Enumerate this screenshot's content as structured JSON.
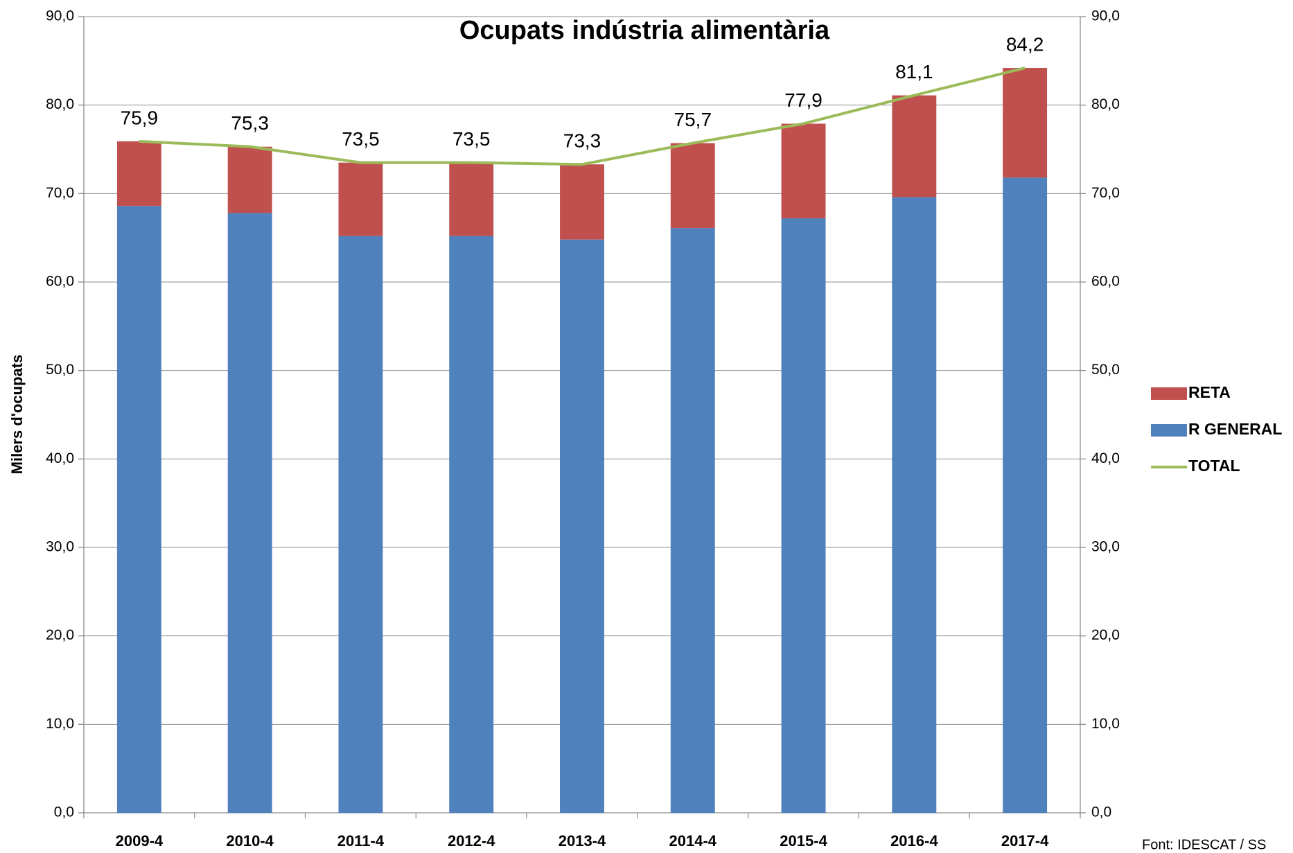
{
  "chart_data": {
    "type": "bar",
    "stacked": true,
    "title": "Ocupats indústria alimentària",
    "y_label": "Milers d'ocupats",
    "source": "Font: IDESCAT / SS",
    "categories": [
      "2009-4",
      "2010-4",
      "2011-4",
      "2012-4",
      "2013-4",
      "2014-4",
      "2015-4",
      "2016-4",
      "2017-4"
    ],
    "series": [
      {
        "name": "R GENERAL",
        "type": "bar",
        "color": "#4f81bd",
        "values": [
          68.6,
          67.8,
          65.2,
          65.2,
          64.8,
          66.1,
          67.2,
          69.6,
          71.8
        ]
      },
      {
        "name": "RETA",
        "type": "bar",
        "color": "#c0504d",
        "values": [
          7.3,
          7.5,
          8.3,
          8.3,
          8.5,
          9.6,
          10.7,
          11.5,
          12.4
        ]
      },
      {
        "name": "TOTAL",
        "type": "line",
        "color": "#9bbb59",
        "values": [
          75.9,
          75.3,
          73.5,
          73.5,
          73.3,
          75.7,
          77.9,
          81.1,
          84.2
        ],
        "value_labels": [
          "75,9",
          "75,3",
          "73,5",
          "73,5",
          "73,3",
          "75,7",
          "77,9",
          "81,1",
          "84,2"
        ]
      }
    ],
    "legend_order": [
      "RETA",
      "R GENERAL",
      "TOTAL"
    ],
    "legend": "right",
    "grid": true,
    "ylim": [
      0,
      90
    ],
    "yticks": [
      {
        "value": 0,
        "label": "0,0"
      },
      {
        "value": 10,
        "label": "10,0"
      },
      {
        "value": 20,
        "label": "20,0"
      },
      {
        "value": 30,
        "label": "30,0"
      },
      {
        "value": 40,
        "label": "40,0"
      },
      {
        "value": 50,
        "label": "50,0"
      },
      {
        "value": 60,
        "label": "60,0"
      },
      {
        "value": 70,
        "label": "70,0"
      },
      {
        "value": 80,
        "label": "80,0"
      },
      {
        "value": 90,
        "label": "90,0"
      }
    ],
    "y2lim": [
      0,
      90
    ],
    "y2ticks": [
      {
        "value": 0,
        "label": "0,0"
      },
      {
        "value": 10,
        "label": "10,0"
      },
      {
        "value": 20,
        "label": "20,0"
      },
      {
        "value": 30,
        "label": "30,0"
      },
      {
        "value": 40,
        "label": "40,0"
      },
      {
        "value": 50,
        "label": "50,0"
      },
      {
        "value": 60,
        "label": "60,0"
      },
      {
        "value": 70,
        "label": "70,0"
      },
      {
        "value": 80,
        "label": "80,0"
      },
      {
        "value": 90,
        "label": "90,0"
      }
    ]
  }
}
